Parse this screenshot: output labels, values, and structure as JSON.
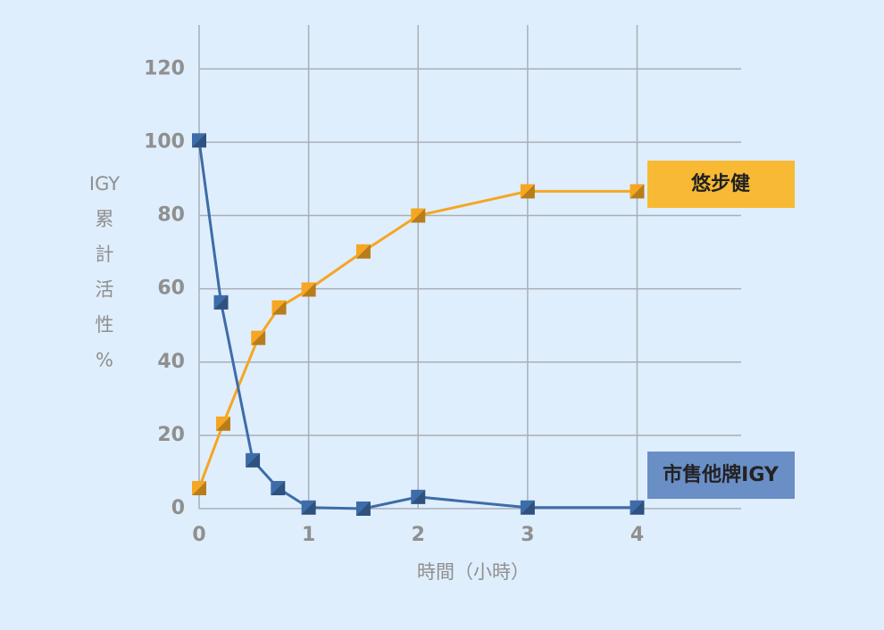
{
  "chart_data": {
    "type": "line",
    "ylabel": [
      "IGY",
      "累",
      "計",
      "活",
      "性",
      "%"
    ],
    "xlabel": "時間（小時）",
    "xlim": [
      0,
      4.95
    ],
    "ylim": [
      0,
      132
    ],
    "xticks": [
      0,
      1,
      2,
      3,
      4
    ],
    "yticks": [
      0,
      20,
      40,
      60,
      80,
      100,
      120
    ],
    "grid": true,
    "series": [
      {
        "name": "悠步健",
        "color": "#f5a623",
        "label_color": "#f8b934",
        "x": [
          0,
          0.22,
          0.54,
          0.73,
          1,
          1.5,
          2,
          3,
          4
        ],
        "values": [
          5.6,
          23.2,
          46.6,
          54.9,
          59.8,
          70.2,
          80,
          86.6,
          86.6
        ]
      },
      {
        "name": "市售他牌IGY",
        "color": "#3d6ca8",
        "label_color": "#6a8ec6",
        "x": [
          0,
          0.2,
          0.49,
          0.72,
          1,
          1.5,
          2,
          3,
          4
        ],
        "values": [
          100.5,
          56.3,
          13.2,
          5.6,
          0.3,
          0,
          3.2,
          0.3,
          0.3
        ]
      }
    ]
  }
}
